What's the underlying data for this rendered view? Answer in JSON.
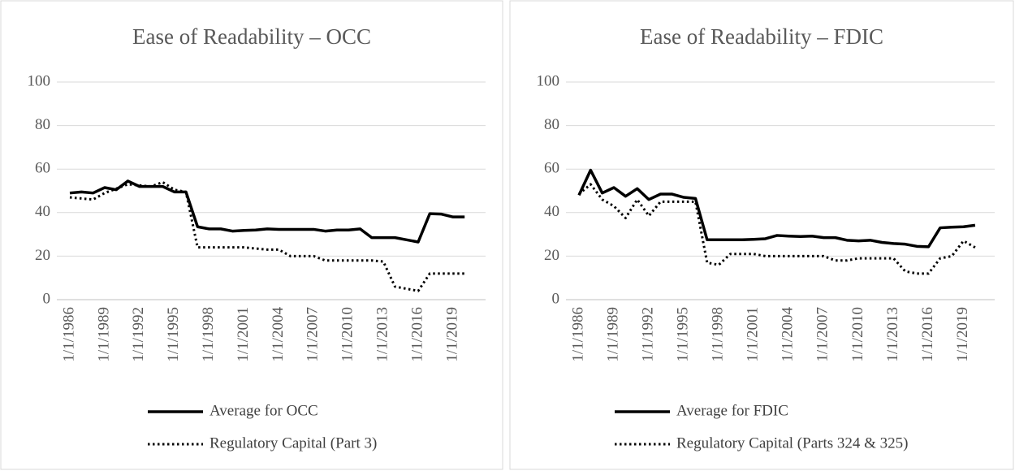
{
  "chart_data": [
    {
      "type": "line",
      "title": "Ease of Readability – OCC",
      "categories": [
        "1/1/1986",
        null,
        null,
        "1/1/1989",
        null,
        null,
        "1/1/1992",
        null,
        null,
        "1/1/1995",
        null,
        null,
        "1/1/1998",
        null,
        null,
        "1/1/2001",
        null,
        null,
        "1/1/2004",
        null,
        null,
        "1/1/2007",
        null,
        null,
        "1/1/2010",
        null,
        null,
        "1/1/2013",
        null,
        null,
        "1/1/2016",
        null,
        null,
        "1/1/2019",
        null
      ],
      "series": [
        {
          "name": "Average for OCC",
          "color": "#000000",
          "line_style": "solid",
          "values": [
            49,
            49.5,
            49,
            51.5,
            50.5,
            54.5,
            52,
            52,
            52,
            49.5,
            49.5,
            33.5,
            32.5,
            32.5,
            31.5,
            31.8,
            32,
            32.5,
            32.3,
            32.3,
            32.3,
            32.3,
            31.5,
            32,
            32,
            32.5,
            28.5,
            28.5,
            28.5,
            27.5,
            26.5,
            39.5,
            39.3,
            38,
            38
          ]
        },
        {
          "name": "Regulatory Capital (Part 3)",
          "color": "#000000",
          "line_style": "dotted",
          "values": [
            47,
            46.5,
            46,
            49,
            51,
            53,
            52.5,
            52,
            54,
            50.5,
            49.5,
            24,
            24,
            24,
            24,
            24,
            23.5,
            23,
            23,
            20,
            20,
            20,
            18,
            18,
            18,
            18,
            18,
            17.5,
            6,
            5,
            4,
            12,
            12,
            12,
            12
          ]
        }
      ],
      "ylim": [
        0,
        100
      ],
      "yticks": [
        0,
        20,
        40,
        60,
        80,
        100
      ],
      "grid": true,
      "legend": "bottom"
    },
    {
      "type": "line",
      "title": "Ease of Readability – FDIC",
      "categories": [
        "1/1/1986",
        null,
        null,
        "1/1/1989",
        null,
        null,
        "1/1/1992",
        null,
        null,
        "1/1/1995",
        null,
        null,
        "1/1/1998",
        null,
        null,
        "1/1/2001",
        null,
        null,
        "1/1/2004",
        null,
        null,
        "1/1/2007",
        null,
        null,
        "1/1/2010",
        null,
        null,
        "1/1/2013",
        null,
        null,
        "1/1/2016",
        null,
        null,
        "1/1/2019",
        null
      ],
      "series": [
        {
          "name": "Average for FDIC",
          "color": "#000000",
          "line_style": "solid",
          "values": [
            48,
            59.5,
            49,
            51.5,
            47.5,
            51,
            46,
            48.5,
            48.5,
            47,
            46.5,
            27.5,
            27.5,
            27.5,
            27.5,
            27.7,
            28,
            29.5,
            29.2,
            29,
            29.2,
            28.5,
            28.5,
            27.3,
            27,
            27.3,
            26.3,
            25.8,
            25.5,
            24.5,
            24.3,
            33,
            33.3,
            33.5,
            34.2
          ]
        },
        {
          "name": "Regulatory Capital (Parts 324 & 325)",
          "color": "#000000",
          "line_style": "dotted",
          "values": [
            48.5,
            53,
            46,
            43,
            37.5,
            46,
            38.5,
            45,
            45,
            45,
            45,
            17,
            16,
            21,
            21,
            21,
            20,
            20,
            20,
            20,
            20,
            20,
            18,
            18,
            19,
            19,
            19,
            19,
            13,
            12,
            12,
            19,
            20,
            27,
            24
          ]
        }
      ],
      "ylim": [
        0,
        100
      ],
      "yticks": [
        0,
        20,
        40,
        60,
        80,
        100
      ],
      "grid": true,
      "legend": "bottom"
    }
  ]
}
